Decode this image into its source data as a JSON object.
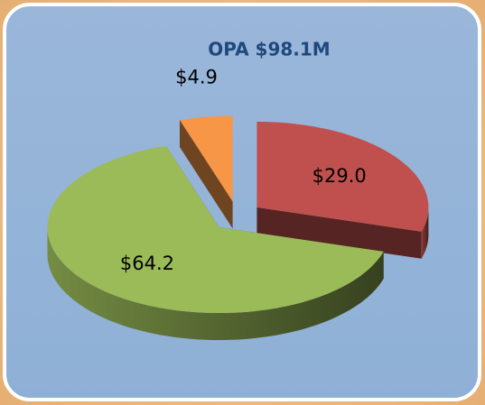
{
  "chart_data": {
    "type": "pie3d",
    "title": "OPA $98.1M",
    "categories": [
      null,
      null,
      null
    ],
    "values": [
      29.0,
      64.2,
      4.9
    ],
    "value_labels": [
      "$29.0",
      "$64.2",
      "$4.9"
    ],
    "colors": [
      "#c0504d",
      "#9bbb59",
      "#f79646"
    ]
  }
}
